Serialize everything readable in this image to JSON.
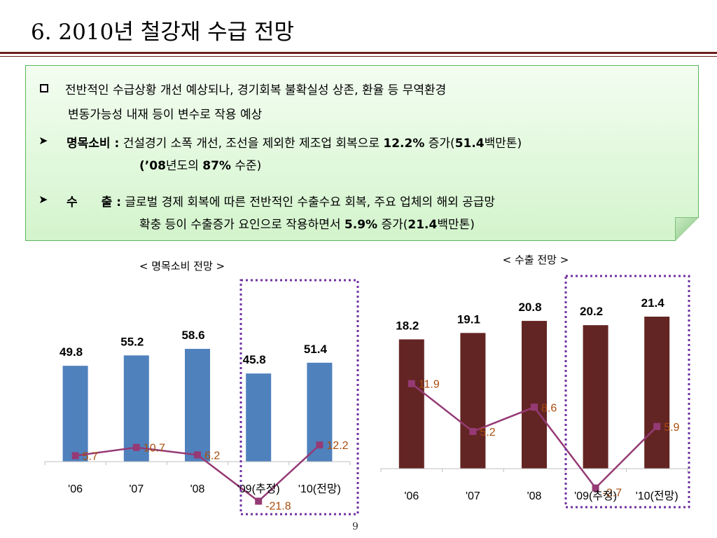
{
  "slide": {
    "title": "6. 2010년 철강재 수급 전망",
    "page_number": "9"
  },
  "summary": {
    "headline_line1": "전반적인 수급상황 개선 예상되나, 경기회복 불확실성 상존, 환율 등 무역환경",
    "headline_line2": "변동가능성 내재 등이 변수로 작용 예상",
    "domestic_label": "명목소비 :",
    "domestic_line1_pre": "건설경기 소폭 개선, 조선을 제외한 제조업 회복으로",
    "domestic_line1_pct": "12.2%",
    "domestic_line1_mid": "증가(",
    "domestic_line1_amount": "51.4",
    "domestic_line1_post": "백만톤)",
    "domestic_line2_pre": "(’",
    "domestic_line2_year": "08",
    "domestic_line2_mid": "년도의",
    "domestic_line2_pct": "87%",
    "domestic_line2_post": "수준)",
    "export_label": "수 출 :",
    "export_line1": "글로벌 경제 회복에 따른 전반적인 수출수요  회복, 주요 업체의 해외 공급망",
    "export_line2_pre": "확충 등이 수출증가 요인으로 작용하면서",
    "export_line2_pct": "5.9%",
    "export_line2_mid": "증가(",
    "export_line2_amount": "21.4",
    "export_line2_post": "백만톤)"
  },
  "colors": {
    "domestic_bar": "#4f81bd",
    "export_bar": "#632523",
    "growth_line": "#953a75",
    "growth_label": "#a84c0c",
    "highlight_border": "#7030a0"
  },
  "chart_data": [
    {
      "type": "bar",
      "title": "< 명목소비 전망 >",
      "categories": [
        "'06",
        "'07",
        "'08",
        "'09(추정)",
        "'10(전망)"
      ],
      "series": [
        {
          "type": "bar",
          "values": [
            49.8,
            55.2,
            58.6,
            45.8,
            51.4
          ]
        },
        {
          "type": "line",
          "values": [
            5.7,
            10.7,
            6.2,
            -21.8,
            12.2
          ]
        }
      ],
      "highlighted_categories": [
        "'09(추정)",
        "'10(전망)"
      ],
      "grid": false,
      "legend": "none"
    },
    {
      "type": "bar",
      "title": "< 수출  전망 >",
      "categories": [
        "'06",
        "'07",
        "'08",
        "'09(추정)",
        "'10(전망)"
      ],
      "series": [
        {
          "type": "bar",
          "values": [
            18.2,
            19.1,
            20.8,
            20.2,
            21.4
          ]
        },
        {
          "type": "line",
          "values": [
            11.9,
            5.2,
            8.6,
            -2.7,
            5.9
          ]
        }
      ],
      "highlighted_categories": [
        "'09(추정)",
        "'10(전망)"
      ],
      "grid": false,
      "legend": "none"
    }
  ]
}
